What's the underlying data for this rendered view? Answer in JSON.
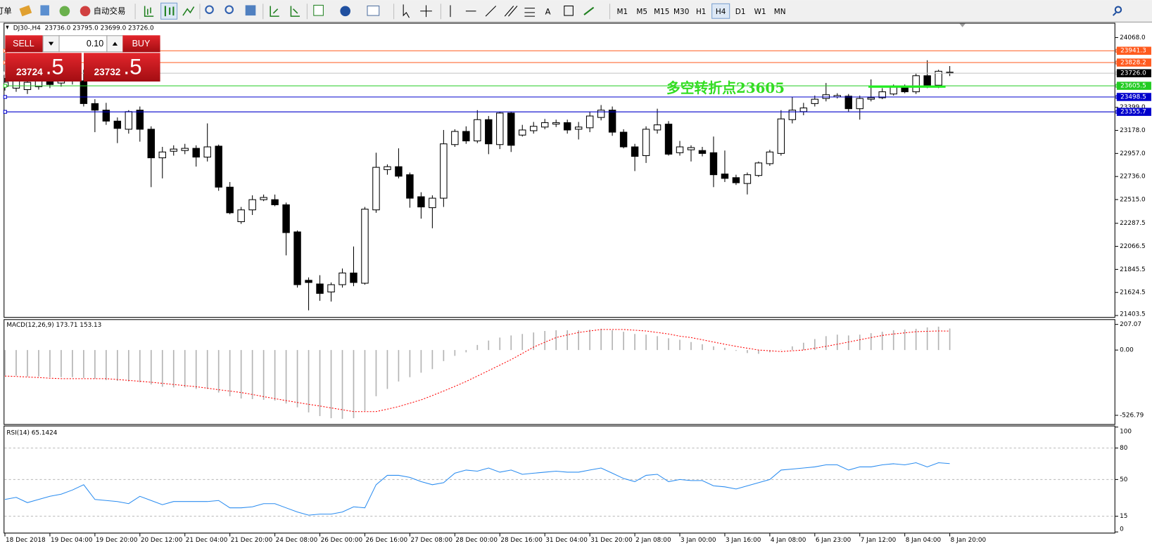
{
  "toolbar": {
    "menu": "订单",
    "autotrade": "自动交易",
    "text_tool": "A",
    "timeframes": [
      "M1",
      "M5",
      "M15",
      "M30",
      "H1",
      "H4",
      "D1",
      "W1",
      "MN"
    ],
    "active_timeframe": "H4"
  },
  "trade_panel": {
    "sell": "SELL",
    "buy": "BUY",
    "lots": "0.10",
    "bid_main": "23724",
    "bid_frac": ".5",
    "ask_main": "23732",
    "ask_frac": ".5"
  },
  "chart_data": [
    {
      "type": "candlestick",
      "title": "DJ30-,H4",
      "ohlc_text": "23736.0 23795.0 23699.0 23726.0",
      "annotation": "多空转折点23605",
      "up_color": "#ffffff",
      "down_color": "#000000",
      "x": [
        "18 Dec 2018",
        null,
        null,
        null,
        "19 Dec 04:00",
        null,
        null,
        null,
        "19 Dec 20:00",
        null,
        null,
        null,
        "20 Dec 12:00",
        null,
        null,
        null,
        "21 Dec 04:00",
        null,
        null,
        null,
        "21 Dec 20:00",
        null,
        null,
        null,
        "24 Dec 08:00",
        null,
        null,
        null,
        "26 Dec 00:00",
        null,
        null,
        null,
        "26 Dec 16:00",
        null,
        null,
        null,
        "27 Dec 08:00",
        null,
        null,
        null,
        "28 Dec 00:00",
        null,
        null,
        null,
        "28 Dec 16:00",
        null,
        null,
        null,
        "31 Dec 04:00",
        null,
        null,
        null,
        "31 Dec 20:00",
        null,
        null,
        null,
        "2 Jan 08:00",
        null,
        null,
        null,
        "3 Jan 00:00",
        null,
        null,
        null,
        "3 Jan 16:00",
        null,
        null,
        null,
        "4 Jan 08:00",
        null,
        null,
        null,
        "6 Jan 23:00",
        null,
        null,
        null,
        "7 Jan 12:00",
        null,
        null,
        null,
        "8 Jan 04:00",
        null,
        null,
        null,
        "8 Jan 20:00"
      ],
      "open": [
        23600,
        23583,
        23569,
        23597,
        23667,
        23632,
        23702,
        23653,
        23435,
        23372,
        23267,
        23189,
        23372,
        23189,
        22915,
        22978,
        22985,
        23006,
        22922,
        23027,
        22634,
        22303,
        22416,
        22514,
        22514,
        22465,
        22205,
        21741,
        21706,
        21629,
        21699,
        21811,
        21713,
        22416,
        22802,
        22830,
        22753,
        22542,
        22437,
        22528,
        23042,
        23168,
        23077,
        23281,
        23042,
        23344,
        23133,
        23175,
        23210,
        23238,
        23252,
        23189,
        23203,
        23302,
        23372,
        23161,
        23020,
        22936,
        23182,
        23238,
        22964,
        22992,
        22985,
        22964,
        22760,
        22725,
        22669,
        22746,
        22859,
        22957,
        23281,
        23358,
        23435,
        23484,
        23499,
        23506,
        23386,
        23477,
        23491,
        23527,
        23597,
        23548,
        23702,
        23611,
        23736
      ],
      "high": [
        23680,
        23723,
        23688,
        23723,
        23759,
        23752,
        23738,
        23759,
        23477,
        23442,
        23302,
        23372,
        23407,
        23217,
        23020,
        23035,
        23049,
        23035,
        23245,
        23042,
        22683,
        22444,
        22556,
        22563,
        22563,
        22486,
        22219,
        21769,
        21790,
        21720,
        21854,
        22065,
        22444,
        22964,
        22852,
        23006,
        22774,
        22585,
        22556,
        23182,
        23189,
        23217,
        23372,
        23316,
        23358,
        23358,
        23231,
        23259,
        23288,
        23281,
        23281,
        23259,
        23358,
        23421,
        23407,
        23189,
        23049,
        23217,
        23386,
        23267,
        23077,
        23035,
        23020,
        23119,
        22985,
        22753,
        22774,
        22880,
        22992,
        23372,
        23499,
        23442,
        23512,
        23632,
        23534,
        23527,
        23512,
        23667,
        23583,
        23618,
        23618,
        23723,
        23850,
        23759,
        23795
      ],
      "low": [
        23560,
        23548,
        23527,
        23569,
        23583,
        23597,
        23618,
        23407,
        23161,
        23231,
        23056,
        23147,
        23070,
        22634,
        22718,
        22936,
        22950,
        22831,
        22880,
        22599,
        22374,
        22282,
        22367,
        22500,
        22451,
        21980,
        21671,
        21453,
        21544,
        21537,
        21671,
        21685,
        21699,
        22388,
        22753,
        22718,
        22437,
        22332,
        22240,
        22444,
        23020,
        23049,
        23056,
        22950,
        22999,
        22971,
        23119,
        23147,
        23189,
        23210,
        23147,
        23091,
        23161,
        23274,
        23126,
        23006,
        22788,
        22866,
        23147,
        22936,
        22936,
        22880,
        22929,
        22634,
        22683,
        22655,
        22564,
        22732,
        22838,
        22936,
        23245,
        23323,
        23407,
        23456,
        23484,
        23358,
        23281,
        23456,
        23477,
        23512,
        23534,
        23527,
        23583,
        23583,
        23699
      ],
      "close": [
        23640,
        23653,
        23639,
        23667,
        23618,
        23702,
        23653,
        23435,
        23372,
        23267,
        23197,
        23358,
        23189,
        22915,
        22971,
        22999,
        23006,
        22922,
        23020,
        22634,
        22388,
        22416,
        22514,
        22535,
        22465,
        22198,
        21699,
        21720,
        21615,
        21699,
        21811,
        21720,
        22423,
        22824,
        22830,
        22739,
        22528,
        22444,
        22528,
        23049,
        23168,
        23077,
        23281,
        23049,
        23344,
        23035,
        23182,
        23217,
        23252,
        23252,
        23182,
        23210,
        23316,
        23372,
        23161,
        23020,
        22929,
        23189,
        23231,
        22950,
        23020,
        23013,
        22957,
        22753,
        22718,
        22676,
        22753,
        22866,
        22971,
        23288,
        23372,
        23393,
        23477,
        23520,
        23512,
        23386,
        23484,
        23491,
        23548,
        23597,
        23548,
        23702,
        23611,
        23745,
        23726
      ],
      "ylim": [
        21389,
        24209
      ],
      "yticks": [
        {
          "value": 24068,
          "label": "24068.0"
        },
        {
          "value": 23399,
          "label": "23399.0"
        },
        {
          "value": 23178,
          "label": "23178.0"
        },
        {
          "value": 22957,
          "label": "22957.0"
        },
        {
          "value": 22736,
          "label": "22736.0"
        },
        {
          "value": 22515,
          "label": "22515.0"
        },
        22287.5,
        22066.5,
        21845.5,
        21624.5,
        21403.5
      ],
      "levels": [
        {
          "value": 23941.3,
          "label": "23941.3",
          "color": "#ff5a1e",
          "box_color": "#ff5a1e"
        },
        {
          "value": 23828.2,
          "label": "23828.2",
          "color": "#ff5a1e",
          "box_color": "#ff5a1e"
        },
        {
          "value": 23726,
          "label": "23726.0",
          "color": "#c8c8c8",
          "box_color": "#000000"
        },
        {
          "value": 23605.5,
          "label": "23605.5",
          "color": "#22cc22",
          "box_color": "#22cc22"
        },
        {
          "value": 23498.5,
          "label": "23498.5",
          "color": "#0000cc",
          "box_color": "#0000cc"
        },
        {
          "value": 23355.7,
          "label": "23355.7",
          "color": "#0000cc",
          "box_color": "#0000cc"
        }
      ]
    },
    {
      "type": "bar",
      "title": "MACD(12,26,9) 173.71 153.13",
      "ylim": [
        -598,
        243
      ],
      "yticks": [
        207.07,
        {
          "value": 0,
          "label": "0.00"
        },
        -526.79
      ],
      "series": [
        {
          "color": "#b4b4b4",
          "values": [
            -205,
            -207,
            -213,
            -213,
            -219,
            -219,
            -219,
            -225,
            -231,
            -243,
            -249,
            -254,
            -260,
            -278,
            -296,
            -302,
            -302,
            -314,
            -314,
            -343,
            -373,
            -391,
            -396,
            -402,
            -408,
            -432,
            -462,
            -503,
            -533,
            -550,
            -556,
            -550,
            -491,
            -373,
            -314,
            -254,
            -219,
            -183,
            -154,
            -89,
            -47,
            -18,
            41,
            77,
            101,
            118,
            130,
            142,
            154,
            160,
            160,
            160,
            166,
            172,
            160,
            148,
            130,
            124,
            112,
            95,
            83,
            65,
            47,
            30,
            18,
            -6,
            -24,
            -30,
            -18,
            3,
            30,
            59,
            89,
            112,
            124,
            118,
            124,
            136,
            148,
            160,
            166,
            172,
            183,
            189,
            173.71
          ]
        },
        {
          "type": "line",
          "color": "#ff0000",
          "values": [
            -210,
            -213,
            -218,
            -222,
            -227,
            -231,
            -231,
            -231,
            -231,
            -231,
            -238,
            -245,
            -252,
            -260,
            -269,
            -278,
            -287,
            -296,
            -308,
            -320,
            -331,
            -343,
            -359,
            -376,
            -392,
            -408,
            -423,
            -438,
            -452,
            -467,
            -482,
            -497,
            -497,
            -497,
            -477,
            -456,
            -429,
            -402,
            -367,
            -331,
            -293,
            -254,
            -210,
            -166,
            -122,
            -77,
            -27,
            24,
            63,
            101,
            122,
            142,
            154,
            166,
            166,
            166,
            160,
            154,
            142,
            130,
            112,
            101,
            83,
            65,
            47,
            30,
            15,
            0,
            -6,
            -12,
            -6,
            0,
            15,
            30,
            47,
            65,
            83,
            101,
            118,
            130,
            139,
            148,
            151,
            154,
            153.13
          ]
        }
      ]
    },
    {
      "type": "line",
      "title": "RSI(14) 65.1424",
      "color": "#2a8cf0",
      "grid": "dashed",
      "ylim": [
        0,
        100
      ],
      "yticks": [
        100,
        80,
        50,
        15,
        0
      ],
      "values": [
        31,
        33,
        28,
        31,
        34,
        36,
        40,
        45,
        31,
        30,
        29,
        27,
        34,
        30,
        26,
        29,
        29,
        29,
        29,
        30,
        23,
        23,
        24,
        27,
        27,
        23,
        19,
        16,
        17,
        17,
        19,
        24,
        23,
        45,
        54,
        54,
        52,
        48,
        45,
        47,
        56,
        59,
        58,
        61,
        57,
        59,
        55,
        56,
        57,
        58,
        57,
        57,
        59,
        61,
        56,
        51,
        48,
        54,
        55,
        48,
        50,
        49,
        49,
        44,
        43,
        41,
        44,
        47,
        50,
        59,
        60,
        61,
        62,
        64,
        64,
        59,
        62,
        62,
        64,
        65,
        64,
        66,
        62,
        66,
        65.1424
      ]
    }
  ]
}
